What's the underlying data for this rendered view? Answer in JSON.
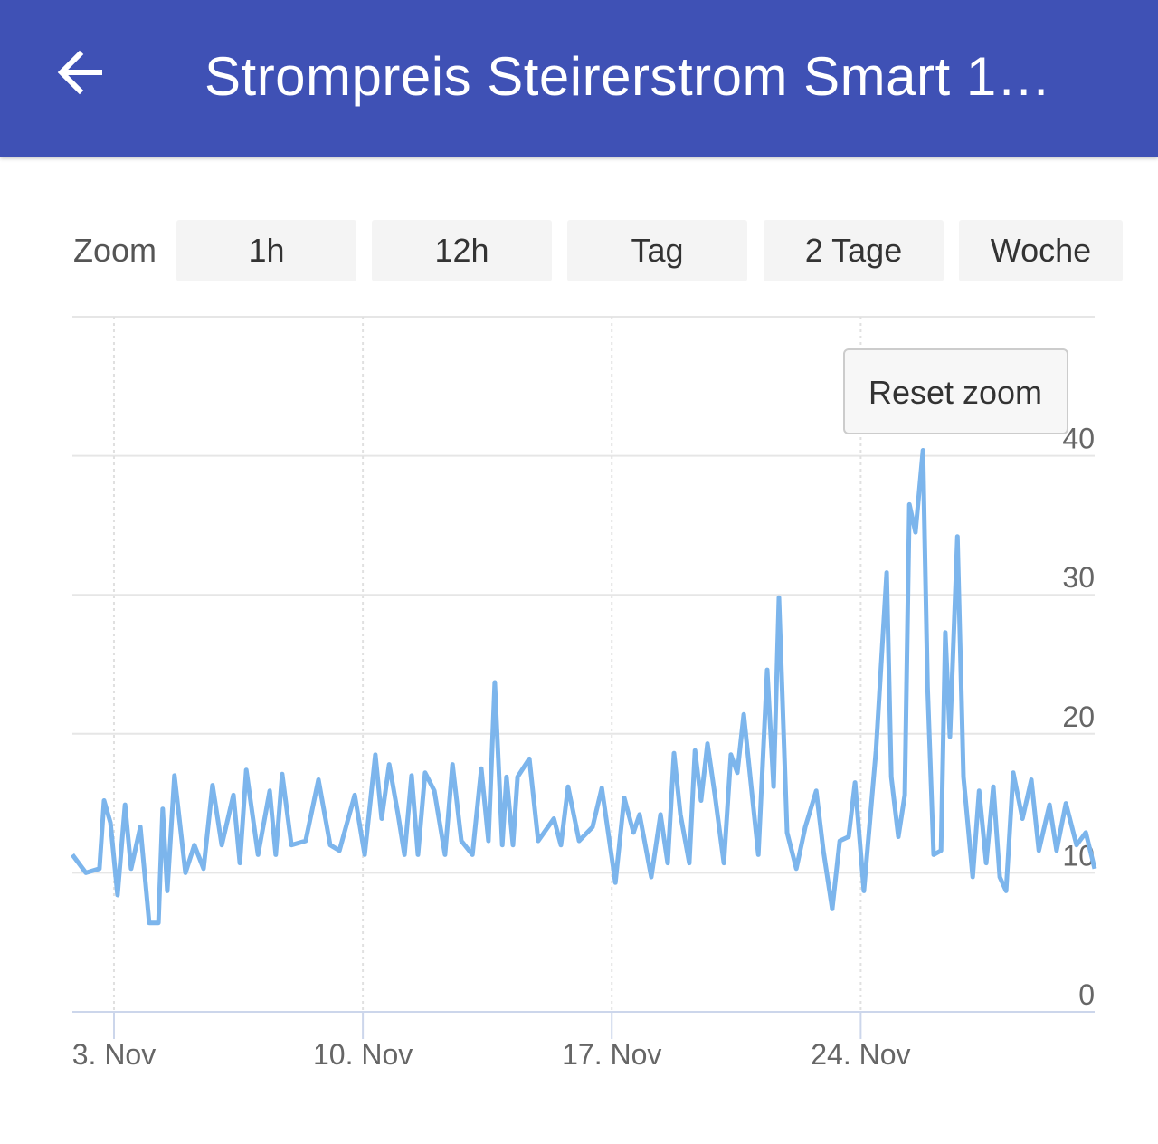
{
  "header": {
    "title": "Strompreis Steirerstrom Smart 1…",
    "back_icon": "arrow-left-icon"
  },
  "zoom": {
    "label": "Zoom",
    "buttons": [
      "1h",
      "12h",
      "Tag",
      "2 Tage",
      "Woche"
    ]
  },
  "reset_zoom_label": "Reset zoom",
  "colors": {
    "header": "#3F51B5",
    "line": "#7CB5EC"
  },
  "chart_data": {
    "type": "line",
    "title": "",
    "xlabel": "",
    "ylabel": "",
    "x_unit": "day of November",
    "xlim": [
      1.83,
      30.58
    ],
    "ylim": [
      0,
      50
    ],
    "x_ticks": [
      {
        "value": 3,
        "label": "3. Nov"
      },
      {
        "value": 10,
        "label": "10. Nov"
      },
      {
        "value": 17,
        "label": "17. Nov"
      },
      {
        "value": 24,
        "label": "24. Nov"
      }
    ],
    "y_ticks": [
      {
        "value": 0,
        "label": "0"
      },
      {
        "value": 10,
        "label": "10"
      },
      {
        "value": 20,
        "label": "20"
      },
      {
        "value": 30,
        "label": "30"
      },
      {
        "value": 40,
        "label": "40"
      }
    ],
    "grid": true,
    "series": [
      {
        "name": "Strompreis",
        "points": [
          [
            1.83,
            11.3
          ],
          [
            2.21,
            10.0
          ],
          [
            2.59,
            10.3
          ],
          [
            2.72,
            15.2
          ],
          [
            2.9,
            13.6
          ],
          [
            3.1,
            8.4
          ],
          [
            3.31,
            14.9
          ],
          [
            3.48,
            10.3
          ],
          [
            3.74,
            13.3
          ],
          [
            3.99,
            6.4
          ],
          [
            4.25,
            6.4
          ],
          [
            4.37,
            14.6
          ],
          [
            4.5,
            8.7
          ],
          [
            4.7,
            17.0
          ],
          [
            5.01,
            10.0
          ],
          [
            5.26,
            12.0
          ],
          [
            5.52,
            10.3
          ],
          [
            5.77,
            16.3
          ],
          [
            6.03,
            12.0
          ],
          [
            6.36,
            15.6
          ],
          [
            6.54,
            10.7
          ],
          [
            6.72,
            17.4
          ],
          [
            7.05,
            11.3
          ],
          [
            7.38,
            15.9
          ],
          [
            7.55,
            11.3
          ],
          [
            7.73,
            17.1
          ],
          [
            7.99,
            12.0
          ],
          [
            8.39,
            12.3
          ],
          [
            8.75,
            16.7
          ],
          [
            9.08,
            12.0
          ],
          [
            9.34,
            11.6
          ],
          [
            9.77,
            15.6
          ],
          [
            10.05,
            11.3
          ],
          [
            10.35,
            18.5
          ],
          [
            10.53,
            13.9
          ],
          [
            10.74,
            17.8
          ],
          [
            10.99,
            14.2
          ],
          [
            11.17,
            11.3
          ],
          [
            11.37,
            17.0
          ],
          [
            11.55,
            11.3
          ],
          [
            11.75,
            17.2
          ],
          [
            12.01,
            15.9
          ],
          [
            12.31,
            11.3
          ],
          [
            12.52,
            17.8
          ],
          [
            12.77,
            12.3
          ],
          [
            13.08,
            11.3
          ],
          [
            13.33,
            17.5
          ],
          [
            13.53,
            12.3
          ],
          [
            13.71,
            23.7
          ],
          [
            13.92,
            12.0
          ],
          [
            14.04,
            16.9
          ],
          [
            14.22,
            12.0
          ],
          [
            14.35,
            16.9
          ],
          [
            14.68,
            18.2
          ],
          [
            14.93,
            12.3
          ],
          [
            15.37,
            13.9
          ],
          [
            15.57,
            12.0
          ],
          [
            15.77,
            16.2
          ],
          [
            16.08,
            12.3
          ],
          [
            16.46,
            13.3
          ],
          [
            16.72,
            16.1
          ],
          [
            17.1,
            9.3
          ],
          [
            17.35,
            15.4
          ],
          [
            17.61,
            12.9
          ],
          [
            17.78,
            14.2
          ],
          [
            18.11,
            9.7
          ],
          [
            18.37,
            14.2
          ],
          [
            18.57,
            10.7
          ],
          [
            18.75,
            18.6
          ],
          [
            18.93,
            14.2
          ],
          [
            19.18,
            10.7
          ],
          [
            19.34,
            18.8
          ],
          [
            19.51,
            15.2
          ],
          [
            19.69,
            19.3
          ],
          [
            19.9,
            15.6
          ],
          [
            20.15,
            10.7
          ],
          [
            20.35,
            18.5
          ],
          [
            20.53,
            17.2
          ],
          [
            20.71,
            21.4
          ],
          [
            20.91,
            16.5
          ],
          [
            21.12,
            11.3
          ],
          [
            21.37,
            24.6
          ],
          [
            21.55,
            16.2
          ],
          [
            21.7,
            29.8
          ],
          [
            21.93,
            12.9
          ],
          [
            22.19,
            10.3
          ],
          [
            22.44,
            13.3
          ],
          [
            22.75,
            15.9
          ],
          [
            22.95,
            11.6
          ],
          [
            23.2,
            7.4
          ],
          [
            23.41,
            12.3
          ],
          [
            23.66,
            12.6
          ],
          [
            23.84,
            16.5
          ],
          [
            24.09,
            8.7
          ],
          [
            24.43,
            18.8
          ],
          [
            24.73,
            31.6
          ],
          [
            24.86,
            16.9
          ],
          [
            25.06,
            12.6
          ],
          [
            25.24,
            15.6
          ],
          [
            25.37,
            36.5
          ],
          [
            25.54,
            34.5
          ],
          [
            25.75,
            40.4
          ],
          [
            25.88,
            23.4
          ],
          [
            26.05,
            11.3
          ],
          [
            26.26,
            11.6
          ],
          [
            26.38,
            27.3
          ],
          [
            26.51,
            19.8
          ],
          [
            26.72,
            34.2
          ],
          [
            26.89,
            16.9
          ],
          [
            27.15,
            9.7
          ],
          [
            27.33,
            15.9
          ],
          [
            27.53,
            10.7
          ],
          [
            27.73,
            16.2
          ],
          [
            27.91,
            9.7
          ],
          [
            28.09,
            8.7
          ],
          [
            28.29,
            17.2
          ],
          [
            28.55,
            13.9
          ],
          [
            28.8,
            16.7
          ],
          [
            29.01,
            11.6
          ],
          [
            29.31,
            14.9
          ],
          [
            29.51,
            11.6
          ],
          [
            29.77,
            15.0
          ],
          [
            30.07,
            12.0
          ],
          [
            30.33,
            12.9
          ],
          [
            30.58,
            10.3
          ]
        ]
      }
    ]
  }
}
